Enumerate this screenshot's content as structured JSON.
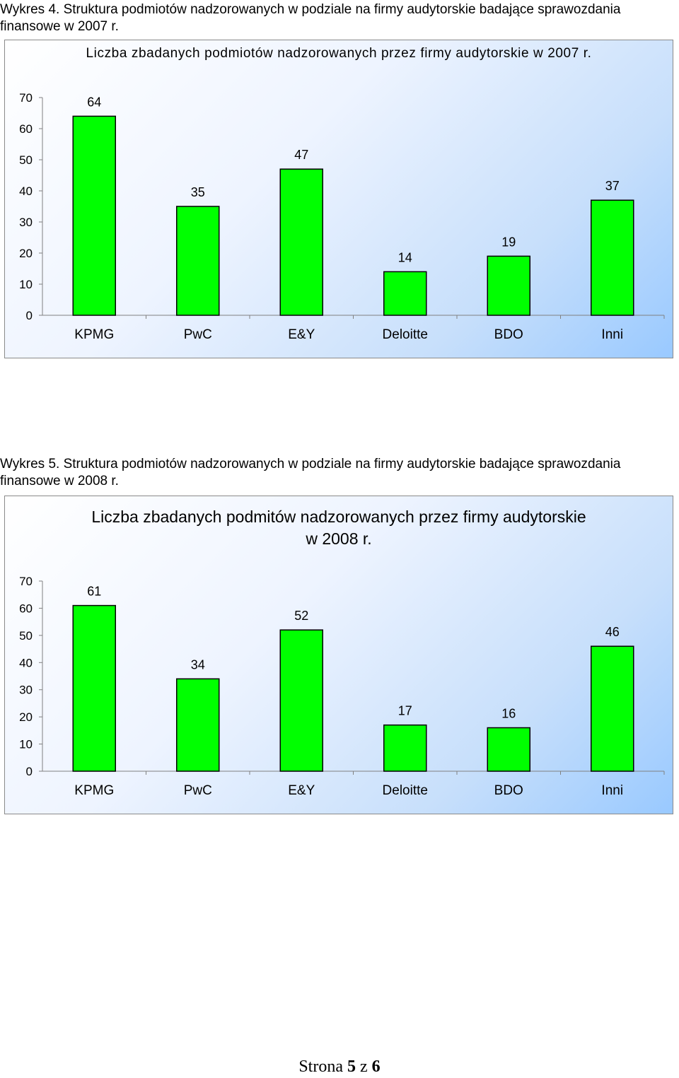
{
  "captions": [
    "Wykres 4. Struktura podmiotów nadzorowanych w podziale na firmy audytorskie badające sprawozdania finansowe w 2007 r.",
    "Wykres 5. Struktura podmiotów nadzorowanych w podziale na firmy audytorskie badające sprawozdania finansowe w 2008 r."
  ],
  "footer": {
    "prefix": "Strona",
    "page": "5",
    "sep": "z",
    "total": "6"
  },
  "colors": {
    "bar": "#00ff00",
    "bar_stroke": "#000000",
    "axis": "#808080"
  },
  "chart_data": [
    {
      "type": "bar",
      "title": "Liczba zbadanych podmiotów nadzorowanych przez firmy audytorskie w 2007 r.",
      "categories": [
        "KPMG",
        "PwC",
        "E&Y",
        "Deloitte",
        "BDO",
        "Inni"
      ],
      "values": [
        64,
        35,
        47,
        14,
        19,
        37
      ],
      "ylim": [
        0,
        70
      ],
      "yticks": [
        0,
        10,
        20,
        30,
        40,
        50,
        60,
        70
      ],
      "xlabel": "",
      "ylabel": "",
      "grid": false,
      "legend": "none"
    },
    {
      "type": "bar",
      "title": "Liczba zbadanych podmitów nadzorowanych przez firmy audytorskie w 2008 r.",
      "categories": [
        "KPMG",
        "PwC",
        "E&Y",
        "Deloitte",
        "BDO",
        "Inni"
      ],
      "values": [
        61,
        34,
        52,
        17,
        16,
        46
      ],
      "ylim": [
        0,
        70
      ],
      "yticks": [
        0,
        10,
        20,
        30,
        40,
        50,
        60,
        70
      ],
      "xlabel": "",
      "ylabel": "",
      "grid": false,
      "legend": "none"
    }
  ]
}
